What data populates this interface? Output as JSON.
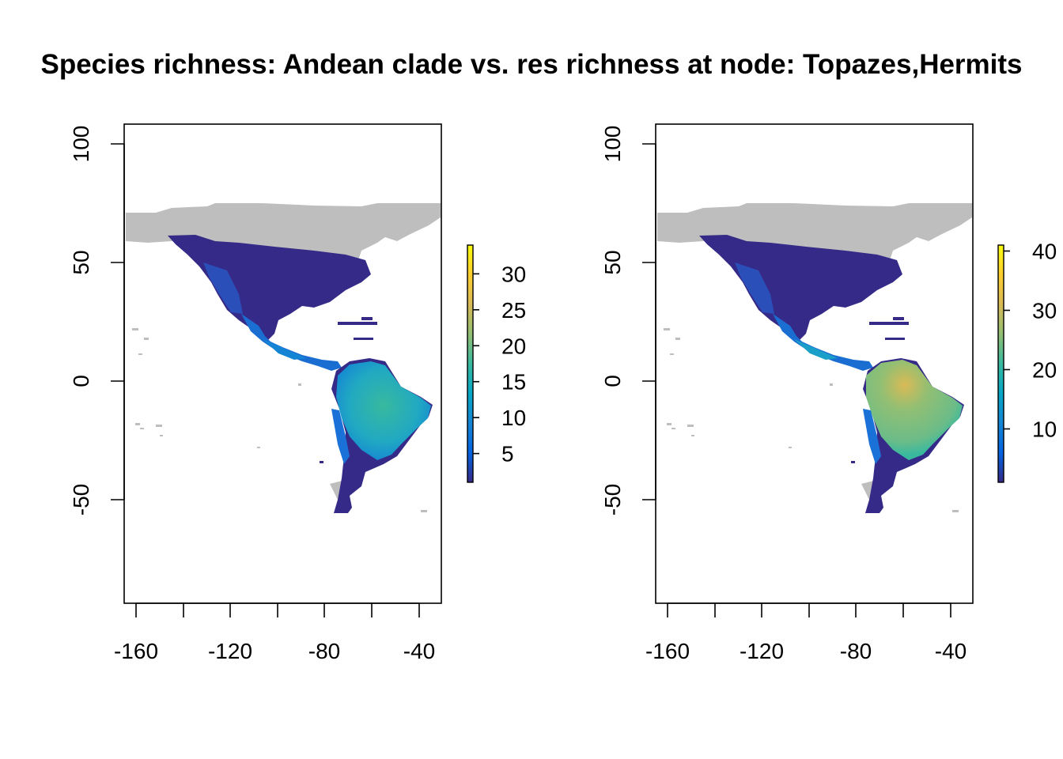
{
  "figure": {
    "title": "Species richness: Andean clade vs. res richness at node: Topazes,Hermits"
  },
  "chart_data": [
    {
      "type": "heatmap",
      "panel": "left",
      "x_ticks": [
        "-160",
        "-120",
        "-80",
        "-40"
      ],
      "y_ticks": [
        "100",
        "50",
        "0",
        "-50"
      ],
      "xlim": [
        -170,
        -30
      ],
      "ylim": [
        -93,
        108
      ],
      "legend": {
        "placement": "right",
        "min": 1,
        "max": 34,
        "ticks": [
          "5",
          "10",
          "15",
          "20",
          "25",
          "30"
        ],
        "tick_values": [
          5,
          10,
          15,
          20,
          25,
          30
        ]
      }
    },
    {
      "type": "heatmap",
      "panel": "right",
      "x_ticks": [
        "-160",
        "-120",
        "-80",
        "-40"
      ],
      "y_ticks": [
        "100",
        "50",
        "0",
        "-50"
      ],
      "xlim": [
        -170,
        -30
      ],
      "ylim": [
        -93,
        108
      ],
      "legend": {
        "placement": "right",
        "min": 1,
        "max": 41,
        "ticks": [
          "10",
          "20",
          "30",
          "40"
        ],
        "tick_values": [
          10,
          20,
          30,
          40
        ]
      }
    }
  ],
  "colors": {
    "no_data_land": "#bebebe",
    "ramp": [
      "#352a87",
      "#0363e1",
      "#1485d4",
      "#06a7c6",
      "#38b99e",
      "#92bf73",
      "#d9ba56",
      "#fcce2e",
      "#f9fb0e"
    ]
  }
}
